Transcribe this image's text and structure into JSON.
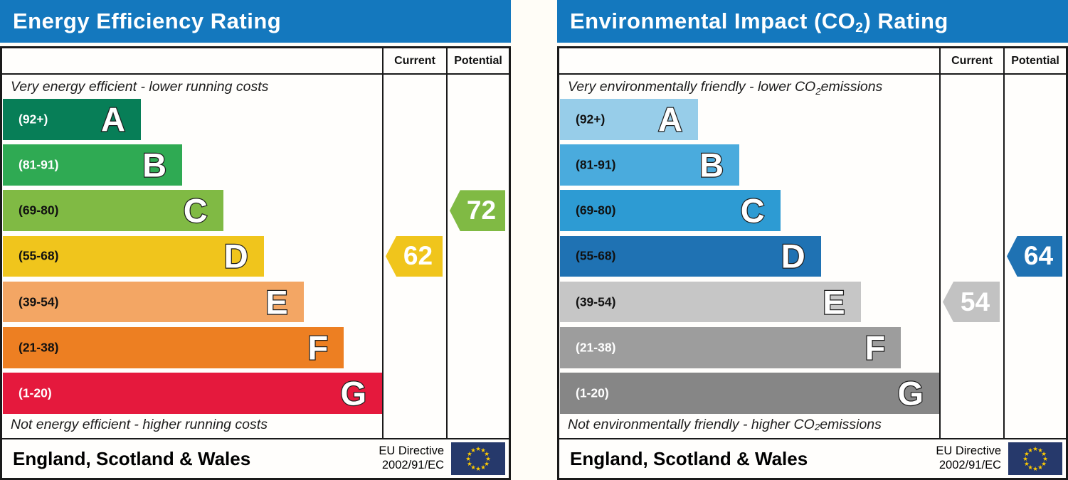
{
  "theme": {
    "header_bg": "#1478be",
    "header_text": "#ffffff",
    "border": "#1a1a1a",
    "flag_bg": "#26396b",
    "flag_stars": "#ffcc00"
  },
  "chart_data": [
    {
      "type": "bar",
      "orientation": "horizontal",
      "title": "Energy Efficiency Rating",
      "categories": [
        "A (92+)",
        "B (81-91)",
        "C (69-80)",
        "D (55-68)",
        "E (39-54)",
        "F (21-38)",
        "G (1-20)"
      ],
      "values": [
        36.4,
        47.3,
        58.1,
        68.8,
        79.3,
        89.9,
        100
      ],
      "values_note": "bar lengths as % of scale width (fixed EPC scale)",
      "bar_colors": [
        "#077e57",
        "#2faa53",
        "#80ba44",
        "#f0c51c",
        "#f3a664",
        "#ed7f22",
        "#e5193d"
      ],
      "current": {
        "value": 62,
        "band": "D"
      },
      "potential": {
        "value": 72,
        "band": "C"
      },
      "top_annotation": "Very energy efficient - lower running costs",
      "bottom_annotation": "Not energy efficient - higher running costs"
    },
    {
      "type": "bar",
      "orientation": "horizontal",
      "title": "Environmental Impact (CO2) Rating",
      "categories": [
        "A (92+)",
        "B (81-91)",
        "C (69-80)",
        "D (55-68)",
        "E (39-54)",
        "F (21-38)",
        "G (1-20)"
      ],
      "values": [
        36.4,
        47.3,
        58.1,
        68.8,
        79.3,
        89.9,
        100
      ],
      "values_note": "bar lengths as % of scale width (fixed EPC scale)",
      "bar_colors": [
        "#97cde9",
        "#4aabdd",
        "#2d9bd3",
        "#1f72b3",
        "#c6c6c6",
        "#9d9d9d",
        "#868686"
      ],
      "current": {
        "value": 54,
        "band": "E"
      },
      "potential": {
        "value": 64,
        "band": "D"
      },
      "top_annotation": "Very environmentally friendly - lower CO2 emissions",
      "bottom_annotation": "Not environmentally friendly - higher CO2 emissions"
    }
  ],
  "panels": [
    {
      "title_pre": "Energy Efficiency Rating",
      "title_sub": "",
      "title_post": "",
      "columns": {
        "current": "Current",
        "potential": "Potential"
      },
      "top_note_pre": "Very energy efficient - lower running costs",
      "top_note_sub": "",
      "top_note_post": "",
      "bottom_note_pre": "Not energy efficient - higher running costs",
      "bottom_note_sub": "",
      "bottom_note_post": "",
      "bands": [
        {
          "letter": "A",
          "range": "(92+)",
          "color": "#077e57",
          "range_color": "#ffffff",
          "width_pct": 36.4
        },
        {
          "letter": "B",
          "range": "(81-91)",
          "color": "#2faa53",
          "range_color": "#ffffff",
          "width_pct": 47.3
        },
        {
          "letter": "C",
          "range": "(69-80)",
          "color": "#80ba44",
          "range_color": "#111111",
          "width_pct": 58.1
        },
        {
          "letter": "D",
          "range": "(55-68)",
          "color": "#f0c51c",
          "range_color": "#111111",
          "width_pct": 68.8
        },
        {
          "letter": "E",
          "range": "(39-54)",
          "color": "#f3a664",
          "range_color": "#111111",
          "width_pct": 79.3
        },
        {
          "letter": "F",
          "range": "(21-38)",
          "color": "#ed7f22",
          "range_color": "#111111",
          "width_pct": 89.9
        },
        {
          "letter": "G",
          "range": "(1-20)",
          "color": "#e5193d",
          "range_color": "#ffffff",
          "width_pct": 100
        }
      ],
      "current": {
        "value": "62",
        "band": "D",
        "row": 3,
        "color": "#f0c51c"
      },
      "potential": {
        "value": "72",
        "band": "C",
        "row": 2,
        "color": "#80ba44"
      },
      "footer": {
        "region": "England, Scotland & Wales",
        "directive_line1": "EU Directive",
        "directive_line2": "2002/91/EC"
      }
    },
    {
      "title_pre": "Environmental Impact (CO",
      "title_sub": "2",
      "title_post": ") Rating",
      "columns": {
        "current": "Current",
        "potential": "Potential"
      },
      "top_note_pre": "Very environmentally friendly - lower CO",
      "top_note_sub": "2",
      "top_note_post": " emissions",
      "bottom_note_pre": "Not environmentally friendly - higher CO",
      "bottom_note_sub": "2",
      "bottom_note_post": " emissions",
      "bands": [
        {
          "letter": "A",
          "range": "(92+)",
          "color": "#97cde9",
          "range_color": "#111111",
          "width_pct": 36.4
        },
        {
          "letter": "B",
          "range": "(81-91)",
          "color": "#4aabdd",
          "range_color": "#111111",
          "width_pct": 47.3
        },
        {
          "letter": "C",
          "range": "(69-80)",
          "color": "#2d9bd3",
          "range_color": "#111111",
          "width_pct": 58.1
        },
        {
          "letter": "D",
          "range": "(55-68)",
          "color": "#1f72b3",
          "range_color": "#111111",
          "width_pct": 68.8
        },
        {
          "letter": "E",
          "range": "(39-54)",
          "color": "#c6c6c6",
          "range_color": "#111111",
          "width_pct": 79.3
        },
        {
          "letter": "F",
          "range": "(21-38)",
          "color": "#9d9d9d",
          "range_color": "#ffffff",
          "width_pct": 89.9
        },
        {
          "letter": "G",
          "range": "(1-20)",
          "color": "#868686",
          "range_color": "#ffffff",
          "width_pct": 100
        }
      ],
      "current": {
        "value": "54",
        "band": "E",
        "row": 4,
        "color": "#c2c2c2"
      },
      "potential": {
        "value": "64",
        "band": "D",
        "row": 3,
        "color": "#1f72b3"
      },
      "footer": {
        "region": "England, Scotland & Wales",
        "directive_line1": "EU Directive",
        "directive_line2": "2002/91/EC"
      }
    }
  ]
}
